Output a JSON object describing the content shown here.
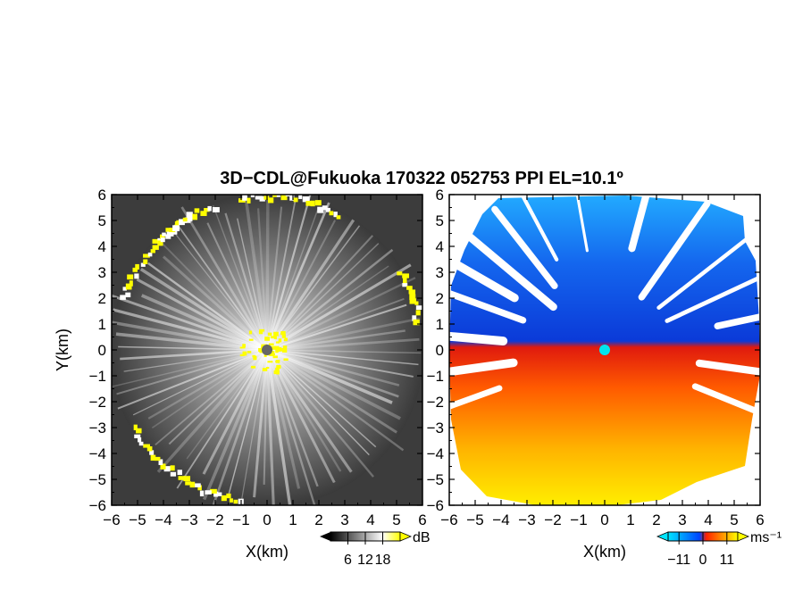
{
  "title": "3D−CDL@Fukuoka 170322 052753 PPI EL=10.1º",
  "chart_data": [
    {
      "type": "heatmap",
      "panel": "reflectivity-snr",
      "title": "3D−CDL@Fukuoka 170322 052753 PPI EL=10.1º",
      "xlabel": "X(km)",
      "ylabel": "Y(km)",
      "xlim": [
        -6,
        6
      ],
      "ylim": [
        -6,
        6
      ],
      "x_ticks": [
        "−6",
        "−5",
        "−4",
        "−3",
        "−2",
        "−1",
        "0",
        "1",
        "2",
        "3",
        "4",
        "5",
        "6"
      ],
      "y_ticks": [
        "6",
        "5",
        "4",
        "3",
        "2",
        "1",
        "0",
        "−1",
        "−2",
        "−3",
        "−4",
        "−5",
        "−6"
      ],
      "colorbar": {
        "unit": "dB",
        "ticks": [
          "6",
          "12",
          "18"
        ],
        "range": [
          0,
          24
        ],
        "colors": [
          "#000000",
          "#ffffff",
          "#ffff00"
        ]
      },
      "description_values": {
        "data_radius_km": 6,
        "radar_position_km": [
          0,
          0
        ]
      }
    },
    {
      "type": "heatmap",
      "panel": "doppler-velocity",
      "xlabel": "X(km)",
      "xlim": [
        -6,
        6
      ],
      "ylim": [
        -6,
        6
      ],
      "x_ticks": [
        "−6",
        "−5",
        "−4",
        "−3",
        "−2",
        "−1",
        "0",
        "1",
        "2",
        "3",
        "4",
        "5",
        "6"
      ],
      "y_ticks": [
        "6",
        "5",
        "4",
        "3",
        "2",
        "1",
        "0",
        "−1",
        "−2",
        "−3",
        "−4",
        "−5",
        "−6"
      ],
      "colorbar": {
        "unit": "ms⁻¹",
        "ticks": [
          "−11",
          "0",
          "11"
        ],
        "range": [
          -16,
          16
        ],
        "colors": [
          "#00e5ff",
          "#0044ff",
          "#ff2200",
          "#ffff00"
        ]
      },
      "description_values": {
        "radar_position_km": [
          0,
          0
        ]
      }
    }
  ],
  "colors": {
    "yellow": "#ffff00",
    "radar_dot_left": "#666666",
    "radar_dot_right": "#00e5ee"
  }
}
